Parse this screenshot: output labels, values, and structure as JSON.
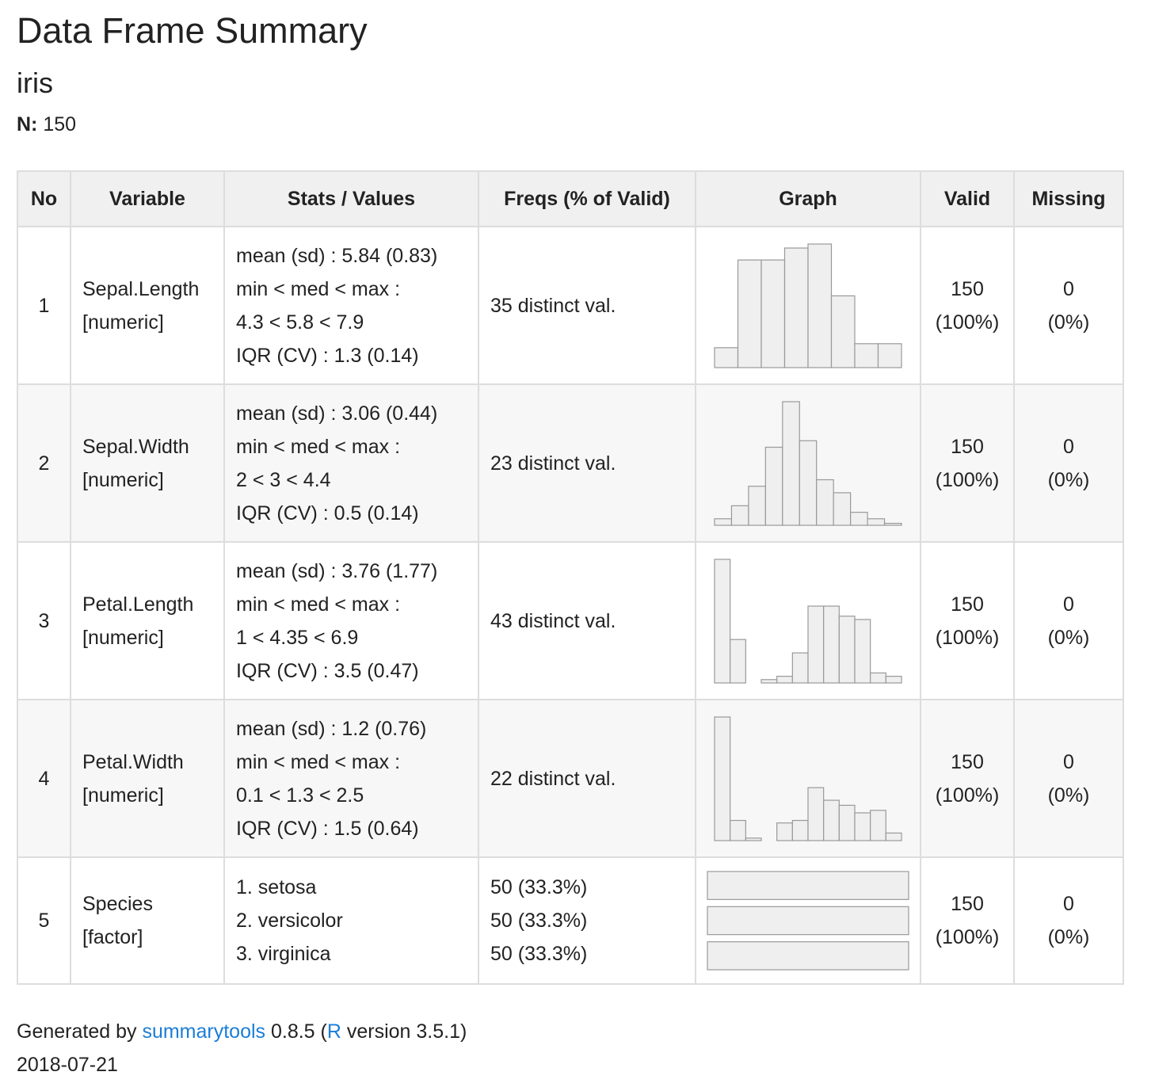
{
  "title": "Data Frame Summary",
  "dataset": "iris",
  "n_label": "N:",
  "n_value": "150",
  "table": {
    "headers": [
      "No",
      "Variable",
      "Stats / Values",
      "Freqs (% of Valid)",
      "Graph",
      "Valid",
      "Missing"
    ],
    "rows": [
      {
        "no": "1",
        "var_name": "Sepal.Length",
        "var_type": "[numeric]",
        "stats": [
          "mean (sd) : 5.84 (0.83)",
          "min < med < max :",
          "4.3 < 5.8 < 7.9",
          "IQR (CV) : 1.3 (0.14)"
        ],
        "freqs": [
          "35 distinct val."
        ],
        "valid": [
          "150",
          "(100%)"
        ],
        "missing": [
          "0",
          "(0%)"
        ]
      },
      {
        "no": "2",
        "var_name": "Sepal.Width",
        "var_type": "[numeric]",
        "stats": [
          "mean (sd) : 3.06 (0.44)",
          "min < med < max :",
          "2 < 3 < 4.4",
          "IQR (CV) : 0.5 (0.14)"
        ],
        "freqs": [
          "23 distinct val."
        ],
        "valid": [
          "150",
          "(100%)"
        ],
        "missing": [
          "0",
          "(0%)"
        ]
      },
      {
        "no": "3",
        "var_name": "Petal.Length",
        "var_type": "[numeric]",
        "stats": [
          "mean (sd) : 3.76 (1.77)",
          "min < med < max :",
          "1 < 4.35 < 6.9",
          "IQR (CV) : 3.5 (0.47)"
        ],
        "freqs": [
          "43 distinct val."
        ],
        "valid": [
          "150",
          "(100%)"
        ],
        "missing": [
          "0",
          "(0%)"
        ]
      },
      {
        "no": "4",
        "var_name": "Petal.Width",
        "var_type": "[numeric]",
        "stats": [
          "mean (sd) : 1.2 (0.76)",
          "min < med < max :",
          "0.1 < 1.3 < 2.5",
          "IQR (CV) : 1.5 (0.64)"
        ],
        "freqs": [
          "22 distinct val."
        ],
        "valid": [
          "150",
          "(100%)"
        ],
        "missing": [
          "0",
          "(0%)"
        ]
      },
      {
        "no": "5",
        "var_name": "Species",
        "var_type": "[factor]",
        "stats": [
          "1. setosa",
          "2. versicolor",
          "3. virginica"
        ],
        "freqs": [
          "50 (33.3%)",
          "50 (33.3%)",
          "50 (33.3%)"
        ],
        "valid": [
          "150",
          "(100%)"
        ],
        "missing": [
          "0",
          "(0%)"
        ]
      }
    ]
  },
  "chart_data": [
    {
      "type": "bar",
      "values": [
        5,
        27,
        27,
        30,
        31,
        18,
        6,
        6
      ]
    },
    {
      "type": "bar",
      "values": [
        1,
        3,
        6,
        12,
        19,
        13,
        7,
        5,
        2,
        1,
        0.3
      ]
    },
    {
      "type": "bar",
      "values": [
        37,
        13,
        0,
        1,
        2,
        9,
        23,
        23,
        20,
        19,
        3,
        2
      ]
    },
    {
      "type": "bar",
      "values": [
        49,
        8,
        1,
        0,
        7,
        8,
        21,
        16,
        14,
        11,
        12,
        3
      ]
    },
    {
      "type": "bar",
      "orientation": "horizontal",
      "categories": [
        "setosa",
        "versicolor",
        "virginica"
      ],
      "values": [
        50,
        50,
        50
      ]
    }
  ],
  "footer": {
    "prefix": "Generated by ",
    "link1": "summarytools",
    "version": " 0.8.5 (",
    "link2": "R",
    "rversion": " version 3.5.1)",
    "date": "2018-07-21"
  }
}
